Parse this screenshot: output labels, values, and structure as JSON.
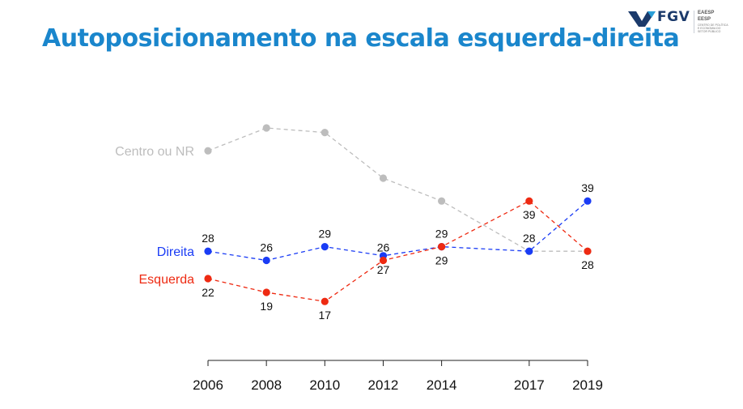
{
  "header": {
    "title": "Autoposicionamento na escala esquerda-direita",
    "logo_text": "FGV",
    "logo_line1": "EAESP",
    "logo_line2": "EESP",
    "logo_line3": "CENTRO DE POLÍTICA E ECONOMIA DO SETOR PÚBLICO"
  },
  "chart_data": {
    "type": "line",
    "title": "Autoposicionamento na escala esquerda-direita",
    "xlabel": "",
    "ylabel": "",
    "x": [
      2006,
      2008,
      2010,
      2012,
      2014,
      2017,
      2019
    ],
    "ylim": [
      10,
      75
    ],
    "grid": false,
    "series": [
      {
        "name": "Centro ou NR",
        "color": "#bdbdbd",
        "values": [
          50,
          55,
          54,
          44,
          39,
          28,
          28
        ],
        "show_labels": false
      },
      {
        "name": "Direita",
        "color": "#1a3cf5",
        "values": [
          28,
          26,
          29,
          27,
          29,
          28,
          39
        ],
        "label_pos": [
          "above",
          "above",
          "above",
          "below",
          "above",
          "above",
          "above"
        ],
        "show_labels": true
      },
      {
        "name": "Esquerda",
        "color": "#ee2a12",
        "values": [
          22,
          19,
          17,
          26,
          29,
          39,
          28
        ],
        "label_pos": [
          "below",
          "below",
          "below",
          "above",
          "below",
          "below",
          "below"
        ],
        "show_labels": true
      }
    ]
  }
}
